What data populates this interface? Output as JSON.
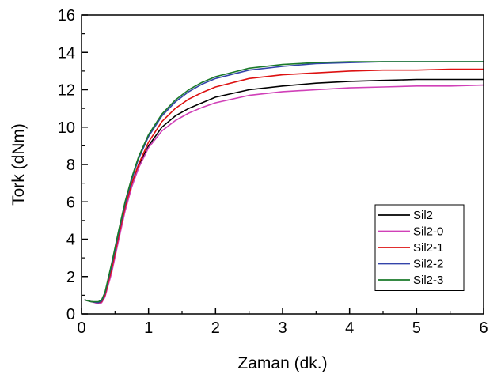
{
  "chart_data": {
    "type": "line",
    "title": "",
    "xlabel": "Zaman (dk.)",
    "ylabel": "Tork (dNm)",
    "xlim": [
      0,
      6
    ],
    "ylim": [
      0,
      16
    ],
    "x_ticks": [
      0,
      1,
      2,
      3,
      4,
      5,
      6
    ],
    "y_ticks": [
      0,
      2,
      4,
      6,
      8,
      10,
      12,
      14,
      16
    ],
    "x_tick_labels": [
      "0",
      "1",
      "2",
      "3",
      "4",
      "5",
      "6"
    ],
    "y_tick_labels": [
      "0",
      "2",
      "4",
      "6",
      "8",
      "10",
      "12",
      "14",
      "16"
    ],
    "grid": false,
    "legend_position": "bottom-right",
    "series": [
      {
        "name": "Sil2",
        "color": "#000000",
        "x": [
          0.05,
          0.15,
          0.25,
          0.3,
          0.35,
          0.45,
          0.55,
          0.65,
          0.75,
          0.85,
          1.0,
          1.2,
          1.4,
          1.6,
          1.8,
          2.0,
          2.5,
          3.0,
          3.5,
          4.0,
          4.5,
          5.0,
          5.5,
          6.0
        ],
        "y": [
          0.75,
          0.65,
          0.6,
          0.65,
          0.95,
          2.3,
          4.0,
          5.6,
          6.9,
          7.9,
          9.0,
          10.0,
          10.6,
          11.0,
          11.3,
          11.6,
          12.0,
          12.2,
          12.35,
          12.45,
          12.5,
          12.55,
          12.55,
          12.55
        ]
      },
      {
        "name": "Sil2-0",
        "color": "#d040b8",
        "x": [
          0.05,
          0.15,
          0.25,
          0.3,
          0.35,
          0.45,
          0.55,
          0.65,
          0.75,
          0.85,
          1.0,
          1.2,
          1.4,
          1.6,
          1.8,
          2.0,
          2.5,
          3.0,
          3.5,
          4.0,
          4.5,
          5.0,
          5.5,
          6.0
        ],
        "y": [
          0.75,
          0.65,
          0.55,
          0.6,
          0.9,
          2.2,
          3.9,
          5.5,
          6.8,
          7.8,
          8.9,
          9.8,
          10.35,
          10.75,
          11.05,
          11.3,
          11.7,
          11.9,
          12.0,
          12.1,
          12.15,
          12.2,
          12.2,
          12.25
        ]
      },
      {
        "name": "Sil2-1",
        "color": "#dd1111",
        "x": [
          0.05,
          0.15,
          0.25,
          0.3,
          0.35,
          0.45,
          0.55,
          0.65,
          0.75,
          0.85,
          1.0,
          1.2,
          1.4,
          1.6,
          1.8,
          2.0,
          2.5,
          3.0,
          3.5,
          4.0,
          4.5,
          5.0,
          5.5,
          6.0
        ],
        "y": [
          0.75,
          0.65,
          0.6,
          0.65,
          1.0,
          2.4,
          4.1,
          5.7,
          7.0,
          8.0,
          9.2,
          10.3,
          11.0,
          11.5,
          11.85,
          12.15,
          12.6,
          12.8,
          12.9,
          13.0,
          13.05,
          13.05,
          13.1,
          13.1
        ]
      },
      {
        "name": "Sil2-2",
        "color": "#3344aa",
        "x": [
          0.05,
          0.15,
          0.25,
          0.3,
          0.35,
          0.45,
          0.55,
          0.65,
          0.75,
          0.85,
          1.0,
          1.2,
          1.4,
          1.6,
          1.8,
          2.0,
          2.5,
          3.0,
          3.5,
          4.0,
          4.5,
          5.0,
          5.5,
          6.0
        ],
        "y": [
          0.75,
          0.65,
          0.6,
          0.7,
          1.1,
          2.6,
          4.3,
          5.9,
          7.2,
          8.3,
          9.5,
          10.6,
          11.35,
          11.9,
          12.3,
          12.6,
          13.05,
          13.25,
          13.4,
          13.45,
          13.5,
          13.5,
          13.5,
          13.5
        ]
      },
      {
        "name": "Sil2-3",
        "color": "#1a7a2a",
        "x": [
          0.05,
          0.15,
          0.25,
          0.3,
          0.35,
          0.45,
          0.55,
          0.65,
          0.75,
          0.85,
          1.0,
          1.2,
          1.4,
          1.6,
          1.8,
          2.0,
          2.5,
          3.0,
          3.5,
          4.0,
          4.5,
          5.0,
          5.5,
          6.0
        ],
        "y": [
          0.75,
          0.65,
          0.65,
          0.75,
          1.15,
          2.7,
          4.4,
          6.0,
          7.3,
          8.4,
          9.6,
          10.7,
          11.45,
          12.0,
          12.4,
          12.7,
          13.15,
          13.35,
          13.45,
          13.5,
          13.5,
          13.5,
          13.5,
          13.5
        ]
      }
    ]
  }
}
